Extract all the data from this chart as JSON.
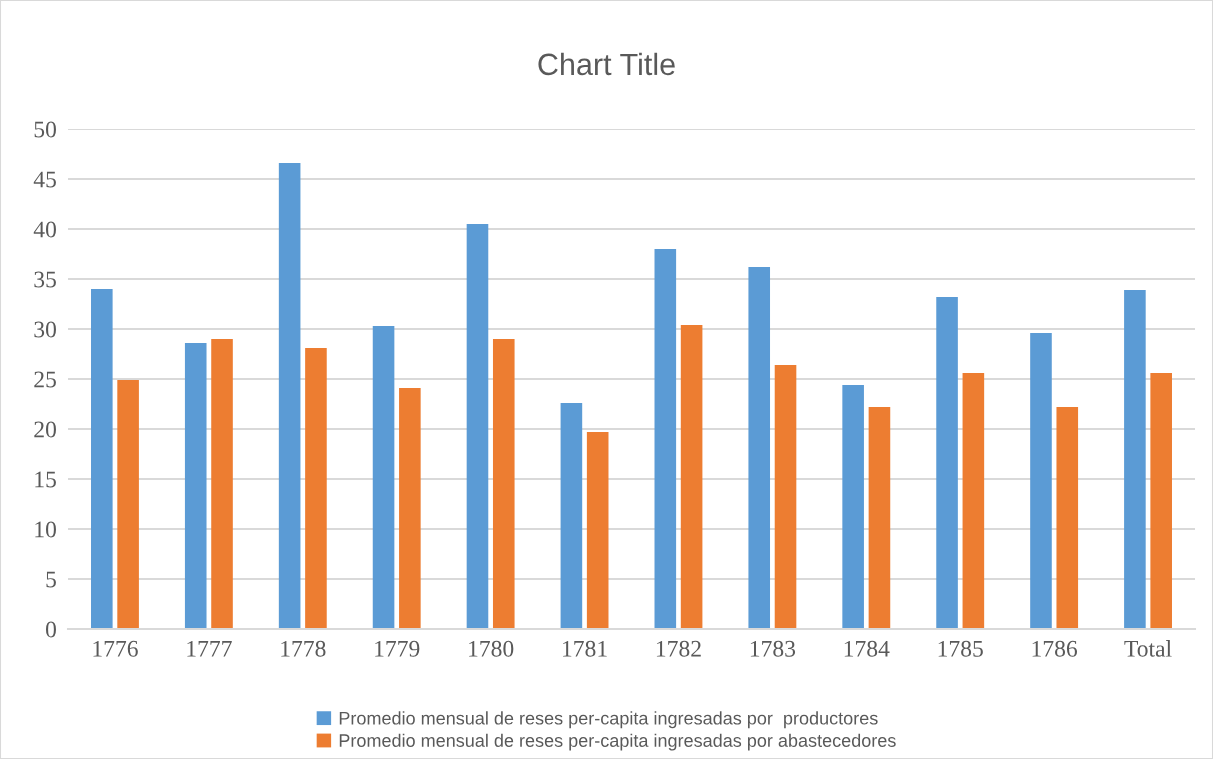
{
  "chart_data": {
    "type": "bar",
    "title": "Chart Title",
    "categories": [
      "1776",
      "1777",
      "1778",
      "1779",
      "1780",
      "1781",
      "1782",
      "1783",
      "1784",
      "1785",
      "1786",
      "Total"
    ],
    "series": [
      {
        "name": "Promedio mensual de reses per-capita ingresadas por  productores",
        "color": "#5b9bd5",
        "values": [
          34.0,
          28.6,
          46.6,
          30.3,
          40.5,
          22.6,
          38.0,
          36.2,
          24.4,
          33.2,
          29.6,
          33.9
        ]
      },
      {
        "name": "Promedio mensual de reses per-capita ingresadas por abastecedores",
        "color": "#ed7d31",
        "values": [
          24.9,
          29.0,
          28.1,
          24.1,
          29.0,
          19.7,
          30.4,
          26.4,
          22.2,
          25.6,
          22.2,
          25.6
        ]
      }
    ],
    "ylim": [
      0,
      50
    ],
    "yticks": [
      0,
      5,
      10,
      15,
      20,
      25,
      30,
      35,
      40,
      45,
      50
    ],
    "grid": "y",
    "legend": "bottom"
  }
}
